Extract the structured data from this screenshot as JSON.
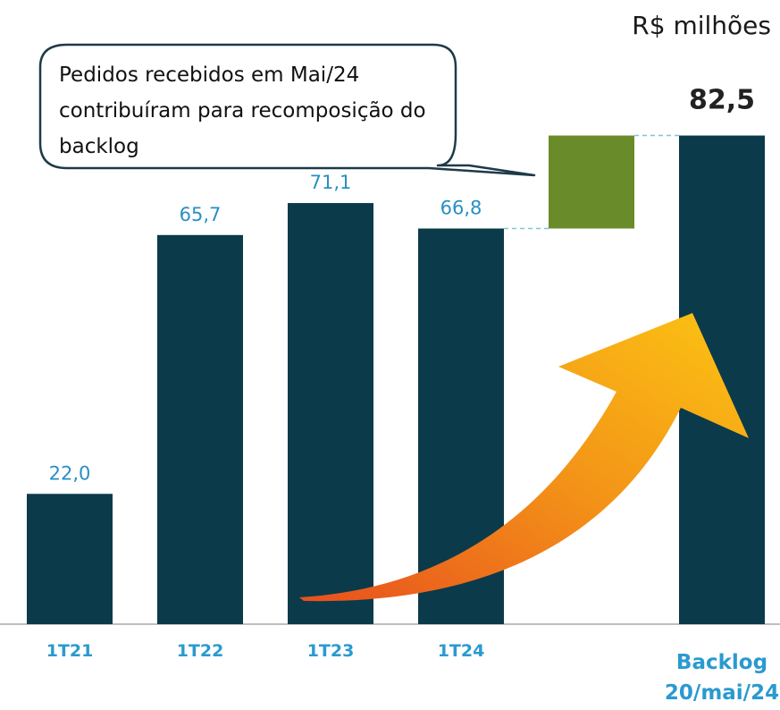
{
  "chart_data": {
    "type": "waterfall",
    "unit_label": "R$ milhões",
    "annotation": "Pedidos recebidos em Mai/24 contribuíram para recomposição do backlog",
    "categories": [
      "1T21",
      "1T22",
      "1T23",
      "1T24",
      null,
      "Backlog 20/mai/24"
    ],
    "values": [
      22.0,
      65.7,
      71.1,
      66.8,
      15.7,
      82.5
    ],
    "value_labels": [
      "22,0",
      "65,7",
      "71,1",
      "66,8",
      null,
      "82,5"
    ],
    "colors": [
      "#0b3a4b",
      "#0b3a4b",
      "#0b3a4b",
      "#0b3a4b",
      "#6a8b2a",
      "#0b3a4b"
    ],
    "ylim": [
      0,
      85
    ]
  }
}
